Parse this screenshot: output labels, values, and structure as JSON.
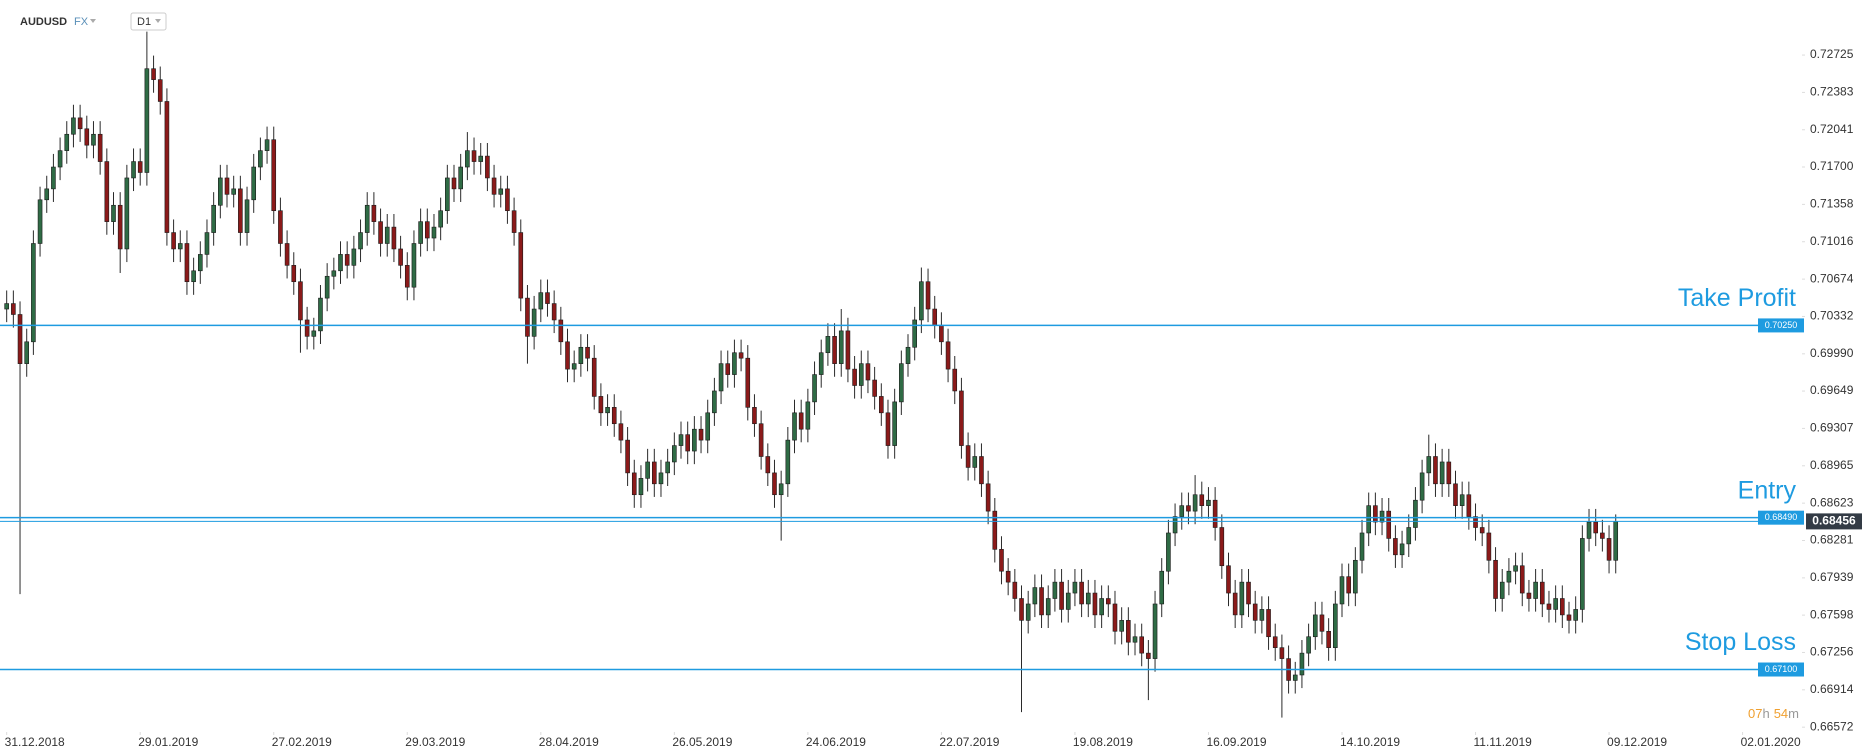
{
  "chart_data": {
    "type": "candlestick",
    "symbol": "AUDUSD",
    "market": "FX",
    "timeframe": "D1",
    "up_color": "#2f6b45",
    "down_color": "#8b1a1a",
    "wick_color": "#2a2a2a",
    "level_color": "#1e9be0",
    "last_price_color": "#333b45",
    "open": [
      0.704,
      0.7045,
      0.7035,
      0.699,
      0.701,
      0.71,
      0.714,
      0.715,
      0.717,
      0.7185,
      0.72,
      0.7215,
      0.7205,
      0.719,
      0.72,
      0.7175,
      0.712,
      0.7135,
      0.7095,
      0.716,
      0.7175,
      0.7165,
      0.726,
      0.725,
      0.723,
      0.711,
      0.7095,
      0.71,
      0.7065,
      0.7075,
      0.709,
      0.711,
      0.7135,
      0.716,
      0.7145,
      0.715,
      0.711,
      0.714,
      0.717,
      0.7185,
      0.7195,
      0.713,
      0.71,
      0.708,
      0.7065,
      0.703,
      0.7015,
      0.702,
      0.705,
      0.707,
      0.7075,
      0.709,
      0.708,
      0.7095,
      0.711,
      0.7135,
      0.712,
      0.71,
      0.7115,
      0.7095,
      0.708,
      0.706,
      0.71,
      0.712,
      0.7105,
      0.7115,
      0.713,
      0.716,
      0.715,
      0.717,
      0.7185,
      0.7175,
      0.718,
      0.716,
      0.7145,
      0.715,
      0.713,
      0.711,
      0.705,
      0.7015,
      0.704,
      0.7055,
      0.7045,
      0.703,
      0.701,
      0.6985,
      0.699,
      0.7005,
      0.6995,
      0.696,
      0.6945,
      0.695,
      0.6935,
      0.692,
      0.689,
      0.687,
      0.6885,
      0.69,
      0.688,
      0.689,
      0.69,
      0.6915,
      0.6925,
      0.691,
      0.693,
      0.692,
      0.6945,
      0.6965,
      0.699,
      0.698,
      0.7,
      0.6995,
      0.695,
      0.6935,
      0.6905,
      0.689,
      0.687,
      0.688,
      0.692,
      0.6945,
      0.693,
      0.6955,
      0.698,
      0.7,
      0.7015,
      0.699,
      0.702,
      0.6985,
      0.697,
      0.699,
      0.6975,
      0.696,
      0.6945,
      0.6915,
      0.6955,
      0.699,
      0.7005,
      0.703,
      0.7065,
      0.704,
      0.7025,
      0.701,
      0.6985,
      0.6965,
      0.6915,
      0.6895,
      0.6905,
      0.688,
      0.6855,
      0.682,
      0.68,
      0.679,
      0.6775,
      0.6755,
      0.677,
      0.6785,
      0.676,
      0.6775,
      0.679,
      0.6765,
      0.678,
      0.679,
      0.677,
      0.678,
      0.676,
      0.6775,
      0.677,
      0.6745,
      0.6755,
      0.6735,
      0.674,
      0.6725,
      0.672,
      0.677,
      0.68,
      0.6835,
      0.685,
      0.686,
      0.6855,
      0.687,
      0.686,
      0.6865,
      0.684,
      0.6805,
      0.678,
      0.676,
      0.679,
      0.677,
      0.6755,
      0.6765,
      0.674,
      0.673,
      0.672,
      0.67,
      0.6705,
      0.6725,
      0.674,
      0.676,
      0.6745,
      0.673,
      0.677,
      0.6795,
      0.678,
      0.681,
      0.6835,
      0.686,
      0.6845,
      0.6855,
      0.683,
      0.6815,
      0.6825,
      0.684,
      0.6865,
      0.689,
      0.6905,
      0.688,
      0.69,
      0.688,
      0.686,
      0.687,
      0.685,
      0.684,
      0.6835,
      0.681,
      0.6775,
      0.679,
      0.68,
      0.6805,
      0.678,
      0.6775,
      0.679,
      0.677,
      0.6765,
      0.6775,
      0.676,
      0.6755,
      0.6765,
      0.683,
      0.6845,
      0.6835,
      0.683,
      0.681
    ],
    "high": [
      0.7057,
      0.7057,
      0.7047,
      0.7022,
      0.7112,
      0.7152,
      0.7162,
      0.7182,
      0.7197,
      0.7212,
      0.7227,
      0.7227,
      0.7217,
      0.7212,
      0.7212,
      0.7187,
      0.7147,
      0.7147,
      0.7172,
      0.7187,
      0.7187,
      0.7294,
      0.7272,
      0.7262,
      0.7242,
      0.7122,
      0.7112,
      0.7112,
      0.7087,
      0.7102,
      0.7122,
      0.7147,
      0.7172,
      0.7172,
      0.7162,
      0.7162,
      0.7152,
      0.7182,
      0.7197,
      0.7207,
      0.7207,
      0.7142,
      0.7112,
      0.7092,
      0.7077,
      0.7042,
      0.7032,
      0.7062,
      0.7082,
      0.7087,
      0.7102,
      0.7102,
      0.7107,
      0.7122,
      0.7147,
      0.7147,
      0.7132,
      0.7127,
      0.7127,
      0.7107,
      0.7092,
      0.7112,
      0.7132,
      0.7132,
      0.7127,
      0.7142,
      0.7172,
      0.7172,
      0.7182,
      0.7202,
      0.7197,
      0.7192,
      0.7192,
      0.7172,
      0.7162,
      0.7162,
      0.7142,
      0.7122,
      0.7062,
      0.7052,
      0.7067,
      0.7067,
      0.7057,
      0.7042,
      0.7022,
      0.7002,
      0.7017,
      0.7017,
      0.7007,
      0.6972,
      0.6962,
      0.6962,
      0.6947,
      0.6932,
      0.6902,
      0.6897,
      0.6912,
      0.6912,
      0.6902,
      0.6912,
      0.6927,
      0.6937,
      0.6937,
      0.6942,
      0.6942,
      0.6957,
      0.6977,
      0.7002,
      0.7002,
      0.7012,
      0.7012,
      0.7007,
      0.6962,
      0.6947,
      0.6917,
      0.6902,
      0.6892,
      0.6932,
      0.6957,
      0.6957,
      0.6967,
      0.6992,
      0.7012,
      0.7027,
      0.7027,
      0.704,
      0.7032,
      0.6997,
      0.7002,
      0.7002,
      0.6987,
      0.6972,
      0.6957,
      0.6967,
      0.7002,
      0.7017,
      0.7042,
      0.7078,
      0.7077,
      0.7052,
      0.7037,
      0.7022,
      0.6997,
      0.6977,
      0.6927,
      0.6917,
      0.6917,
      0.6892,
      0.6867,
      0.6832,
      0.6812,
      0.6802,
      0.6787,
      0.6782,
      0.6797,
      0.6797,
      0.6787,
      0.6802,
      0.6802,
      0.6792,
      0.6802,
      0.6802,
      0.6792,
      0.6792,
      0.6787,
      0.6787,
      0.6782,
      0.6767,
      0.6767,
      0.6752,
      0.6752,
      0.6737,
      0.6782,
      0.6812,
      0.6847,
      0.6862,
      0.6872,
      0.6872,
      0.6888,
      0.6882,
      0.6877,
      0.6877,
      0.6852,
      0.6817,
      0.6792,
      0.6802,
      0.6802,
      0.6782,
      0.6777,
      0.6777,
      0.6752,
      0.6742,
      0.6732,
      0.6717,
      0.6737,
      0.6752,
      0.6772,
      0.6772,
      0.6757,
      0.6782,
      0.6807,
      0.6807,
      0.6822,
      0.6847,
      0.6872,
      0.6872,
      0.6867,
      0.6867,
      0.6842,
      0.6837,
      0.6852,
      0.6877,
      0.6902,
      0.6925,
      0.6917,
      0.6912,
      0.6912,
      0.6892,
      0.6882,
      0.6882,
      0.6862,
      0.6852,
      0.6847,
      0.6822,
      0.6802,
      0.6812,
      0.6817,
      0.6817,
      0.6792,
      0.6802,
      0.6802,
      0.6782,
      0.6787,
      0.6787,
      0.6772,
      0.6777,
      0.6842,
      0.6857,
      0.6857,
      0.6847,
      0.6842,
      0.6852
    ],
    "low": [
      0.7028,
      0.7023,
      0.6779,
      0.6978,
      0.6998,
      0.7088,
      0.7128,
      0.7138,
      0.7158,
      0.7173,
      0.7188,
      0.7193,
      0.7178,
      0.7178,
      0.7163,
      0.7108,
      0.7108,
      0.7073,
      0.7083,
      0.7148,
      0.7153,
      0.7153,
      0.7238,
      0.7218,
      0.7098,
      0.7083,
      0.7083,
      0.7053,
      0.7053,
      0.7063,
      0.7078,
      0.7098,
      0.7123,
      0.7133,
      0.7133,
      0.7098,
      0.7098,
      0.7128,
      0.7158,
      0.7173,
      0.7118,
      0.7088,
      0.7068,
      0.7053,
      0.7,
      0.7003,
      0.7003,
      0.7008,
      0.7038,
      0.7058,
      0.7063,
      0.7068,
      0.7068,
      0.7083,
      0.7098,
      0.7108,
      0.7088,
      0.7088,
      0.7083,
      0.7068,
      0.7048,
      0.7048,
      0.7088,
      0.7093,
      0.7093,
      0.7103,
      0.7118,
      0.7138,
      0.7138,
      0.7158,
      0.7163,
      0.7163,
      0.7148,
      0.7133,
      0.7133,
      0.7118,
      0.7098,
      0.7038,
      0.699,
      0.7003,
      0.7028,
      0.7033,
      0.7018,
      0.6998,
      0.6973,
      0.6973,
      0.6978,
      0.6983,
      0.6948,
      0.6933,
      0.6933,
      0.6923,
      0.6908,
      0.6878,
      0.6858,
      0.6858,
      0.6873,
      0.6868,
      0.6868,
      0.6878,
      0.6888,
      0.6903,
      0.6898,
      0.6898,
      0.6908,
      0.6908,
      0.6933,
      0.6953,
      0.6968,
      0.6968,
      0.6983,
      0.6938,
      0.6923,
      0.6893,
      0.6878,
      0.6858,
      0.6828,
      0.6868,
      0.6908,
      0.6918,
      0.6918,
      0.6943,
      0.6968,
      0.6988,
      0.6978,
      0.6978,
      0.6973,
      0.6958,
      0.6958,
      0.6963,
      0.6948,
      0.6933,
      0.6903,
      0.6903,
      0.6943,
      0.6978,
      0.6993,
      0.7018,
      0.7028,
      0.7013,
      0.6998,
      0.6973,
      0.6953,
      0.6903,
      0.6883,
      0.6883,
      0.6868,
      0.6843,
      0.6808,
      0.6788,
      0.6778,
      0.6763,
      0.6671,
      0.6743,
      0.6758,
      0.6748,
      0.6748,
      0.6763,
      0.6753,
      0.6753,
      0.6768,
      0.6758,
      0.6758,
      0.6748,
      0.6748,
      0.6758,
      0.6733,
      0.6733,
      0.6723,
      0.6723,
      0.6713,
      0.6682,
      0.6708,
      0.6758,
      0.6788,
      0.6823,
      0.6838,
      0.6843,
      0.6843,
      0.6848,
      0.6848,
      0.6828,
      0.6793,
      0.6768,
      0.6748,
      0.6748,
      0.6758,
      0.6743,
      0.6743,
      0.6728,
      0.6718,
      0.6666,
      0.6688,
      0.6688,
      0.6693,
      0.6713,
      0.6728,
      0.6733,
      0.6718,
      0.6718,
      0.6758,
      0.6768,
      0.6768,
      0.6798,
      0.6823,
      0.6833,
      0.6833,
      0.6818,
      0.6803,
      0.6803,
      0.6813,
      0.6828,
      0.6853,
      0.6878,
      0.6868,
      0.6868,
      0.6868,
      0.6848,
      0.6848,
      0.6838,
      0.6828,
      0.6823,
      0.6798,
      0.6763,
      0.6763,
      0.6778,
      0.6788,
      0.6768,
      0.6763,
      0.6763,
      0.6758,
      0.6753,
      0.6753,
      0.6748,
      0.6743,
      0.6743,
      0.6753,
      0.6818,
      0.6823,
      0.6818,
      0.6798,
      0.6798
    ],
    "close": [
      0.7045,
      0.7035,
      0.699,
      0.701,
      0.71,
      0.714,
      0.715,
      0.717,
      0.7185,
      0.72,
      0.7215,
      0.7205,
      0.719,
      0.72,
      0.7175,
      0.712,
      0.7135,
      0.7095,
      0.716,
      0.7175,
      0.7165,
      0.726,
      0.725,
      0.723,
      0.711,
      0.7095,
      0.71,
      0.7065,
      0.7075,
      0.709,
      0.711,
      0.7135,
      0.716,
      0.7145,
      0.715,
      0.711,
      0.714,
      0.717,
      0.7185,
      0.7195,
      0.713,
      0.71,
      0.708,
      0.7065,
      0.703,
      0.7015,
      0.702,
      0.705,
      0.707,
      0.7075,
      0.709,
      0.708,
      0.7095,
      0.711,
      0.7135,
      0.712,
      0.71,
      0.7115,
      0.7095,
      0.708,
      0.706,
      0.71,
      0.712,
      0.7105,
      0.7115,
      0.713,
      0.716,
      0.715,
      0.717,
      0.7185,
      0.7175,
      0.718,
      0.716,
      0.7145,
      0.715,
      0.713,
      0.711,
      0.705,
      0.7015,
      0.704,
      0.7055,
      0.7045,
      0.703,
      0.701,
      0.6985,
      0.699,
      0.7005,
      0.6995,
      0.696,
      0.6945,
      0.695,
      0.6935,
      0.692,
      0.689,
      0.687,
      0.6885,
      0.69,
      0.688,
      0.689,
      0.69,
      0.6915,
      0.6925,
      0.691,
      0.693,
      0.692,
      0.6945,
      0.6965,
      0.699,
      0.698,
      0.7,
      0.6995,
      0.695,
      0.6935,
      0.6905,
      0.689,
      0.687,
      0.688,
      0.692,
      0.6945,
      0.693,
      0.6955,
      0.698,
      0.7,
      0.7015,
      0.699,
      0.702,
      0.6985,
      0.697,
      0.699,
      0.6975,
      0.696,
      0.6945,
      0.6915,
      0.6955,
      0.699,
      0.7005,
      0.703,
      0.7065,
      0.704,
      0.7025,
      0.701,
      0.6985,
      0.6965,
      0.6915,
      0.6895,
      0.6905,
      0.688,
      0.6855,
      0.682,
      0.68,
      0.679,
      0.6775,
      0.6755,
      0.677,
      0.6785,
      0.676,
      0.6775,
      0.679,
      0.6765,
      0.678,
      0.679,
      0.677,
      0.678,
      0.676,
      0.6775,
      0.677,
      0.6745,
      0.6755,
      0.6735,
      0.674,
      0.6725,
      0.672,
      0.677,
      0.68,
      0.6835,
      0.685,
      0.686,
      0.6855,
      0.687,
      0.686,
      0.6865,
      0.684,
      0.6805,
      0.678,
      0.676,
      0.679,
      0.677,
      0.6755,
      0.6765,
      0.674,
      0.673,
      0.672,
      0.67,
      0.6705,
      0.6725,
      0.674,
      0.676,
      0.6745,
      0.673,
      0.677,
      0.6795,
      0.678,
      0.681,
      0.6835,
      0.686,
      0.6845,
      0.6855,
      0.683,
      0.6815,
      0.6825,
      0.684,
      0.6865,
      0.689,
      0.6905,
      0.688,
      0.69,
      0.688,
      0.686,
      0.687,
      0.685,
      0.684,
      0.6835,
      0.681,
      0.6775,
      0.679,
      0.68,
      0.6805,
      0.678,
      0.6775,
      0.679,
      0.677,
      0.6765,
      0.6775,
      0.676,
      0.6755,
      0.6765,
      0.683,
      0.6845,
      0.6835,
      0.683,
      0.681,
      0.68456
    ],
    "xlim": [
      -1,
      268.6
    ],
    "xticks": [
      {
        "value": 0,
        "label": "31.12.2018"
      },
      {
        "value": 20,
        "label": "29.01.2019"
      },
      {
        "value": 40,
        "label": "27.02.2019"
      },
      {
        "value": 60,
        "label": "29.03.2019"
      },
      {
        "value": 80,
        "label": "28.04.2019"
      },
      {
        "value": 100,
        "label": "26.05.2019"
      },
      {
        "value": 120,
        "label": "24.06.2019"
      },
      {
        "value": 140,
        "label": "22.07.2019"
      },
      {
        "value": 160,
        "label": "19.08.2019"
      },
      {
        "value": 180,
        "label": "16.09.2019"
      },
      {
        "value": 200,
        "label": "14.10.2019"
      },
      {
        "value": 220,
        "label": "11.11.2019"
      },
      {
        "value": 240,
        "label": "09.12.2019"
      },
      {
        "value": 260,
        "label": "02.01.2020"
      }
    ],
    "ylim": [
      0.66528,
      0.73229
    ],
    "yticks": [
      0.72725,
      0.72383,
      0.72041,
      {
        "value": 0.717,
        "label": "0.71700"
      },
      0.71358,
      0.71016,
      0.70674,
      0.70332,
      {
        "value": 0.6999,
        "label": "0.69990"
      },
      0.69649,
      0.69307,
      0.68965,
      0.68623,
      0.68281,
      0.67939,
      0.67598,
      0.67256,
      0.66914,
      0.66572
    ],
    "levels": [
      {
        "name": "Take Profit",
        "value": 0.7025,
        "label": "0.70250"
      },
      {
        "name": "Entry",
        "value": 0.6849,
        "label": "0.68490"
      },
      {
        "name": "Stop Loss",
        "value": 0.671,
        "label": "0.67100"
      }
    ],
    "last_price": 0.68456,
    "countdown": {
      "hours": "07",
      "hours_unit": "h",
      "minutes": "54",
      "minutes_unit": "m"
    }
  }
}
